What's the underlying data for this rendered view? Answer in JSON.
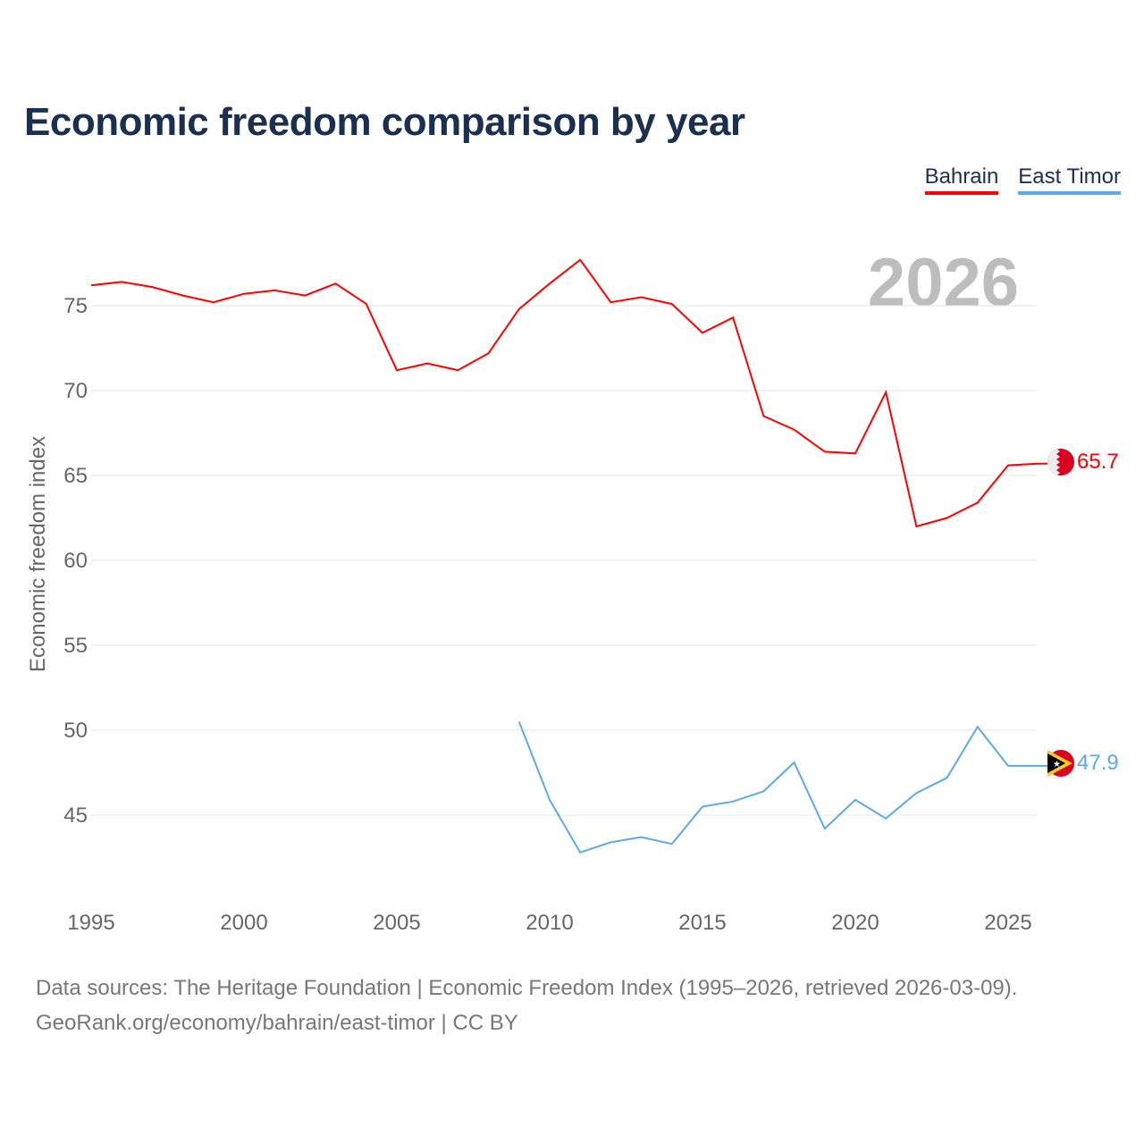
{
  "chart_data": {
    "type": "line",
    "title": "Economic freedom comparison by year",
    "ylabel": "Economic freedom index",
    "xlabel": "",
    "xlim": [
      1995,
      2026
    ],
    "ylim": [
      40,
      78
    ],
    "x_ticks": [
      1995,
      2000,
      2005,
      2010,
      2015,
      2020,
      2025
    ],
    "y_ticks": [
      45,
      50,
      55,
      60,
      65,
      70,
      75
    ],
    "grid": true,
    "legend_position": "top-right",
    "year_watermark": "2026",
    "series": [
      {
        "name": "Bahrain",
        "color": "#ff0000",
        "x": [
          1995,
          1996,
          1997,
          1998,
          1999,
          2000,
          2001,
          2002,
          2003,
          2004,
          2005,
          2006,
          2007,
          2008,
          2009,
          2010,
          2011,
          2012,
          2013,
          2014,
          2015,
          2016,
          2017,
          2018,
          2019,
          2020,
          2021,
          2022,
          2023,
          2024,
          2025,
          2026
        ],
        "values": [
          76.2,
          76.4,
          76.1,
          75.6,
          75.2,
          75.7,
          75.9,
          75.6,
          76.3,
          75.1,
          71.2,
          71.6,
          71.2,
          72.2,
          74.8,
          76.3,
          77.7,
          75.2,
          75.5,
          75.1,
          73.4,
          74.3,
          68.5,
          67.7,
          66.4,
          66.3,
          69.9,
          62.0,
          62.5,
          63.4,
          65.6,
          65.7
        ],
        "end_label": "65.7"
      },
      {
        "name": "East Timor",
        "color": "#5ea8ea",
        "x": [
          2009,
          2010,
          2011,
          2012,
          2013,
          2014,
          2015,
          2016,
          2017,
          2018,
          2019,
          2020,
          2021,
          2022,
          2023,
          2024,
          2025,
          2026
        ],
        "values": [
          50.5,
          45.9,
          42.8,
          43.4,
          43.7,
          43.3,
          45.5,
          45.8,
          46.4,
          48.1,
          44.2,
          45.9,
          44.8,
          46.3,
          47.2,
          50.2,
          47.9,
          47.9
        ],
        "end_label": "47.9"
      }
    ]
  },
  "footer": {
    "line1": "Data sources: The Heritage Foundation | Economic Freedom Index (1995–2026, retrieved 2026-03-09).",
    "line2": "GeoRank.org/economy/bahrain/east-timor | CC BY"
  }
}
